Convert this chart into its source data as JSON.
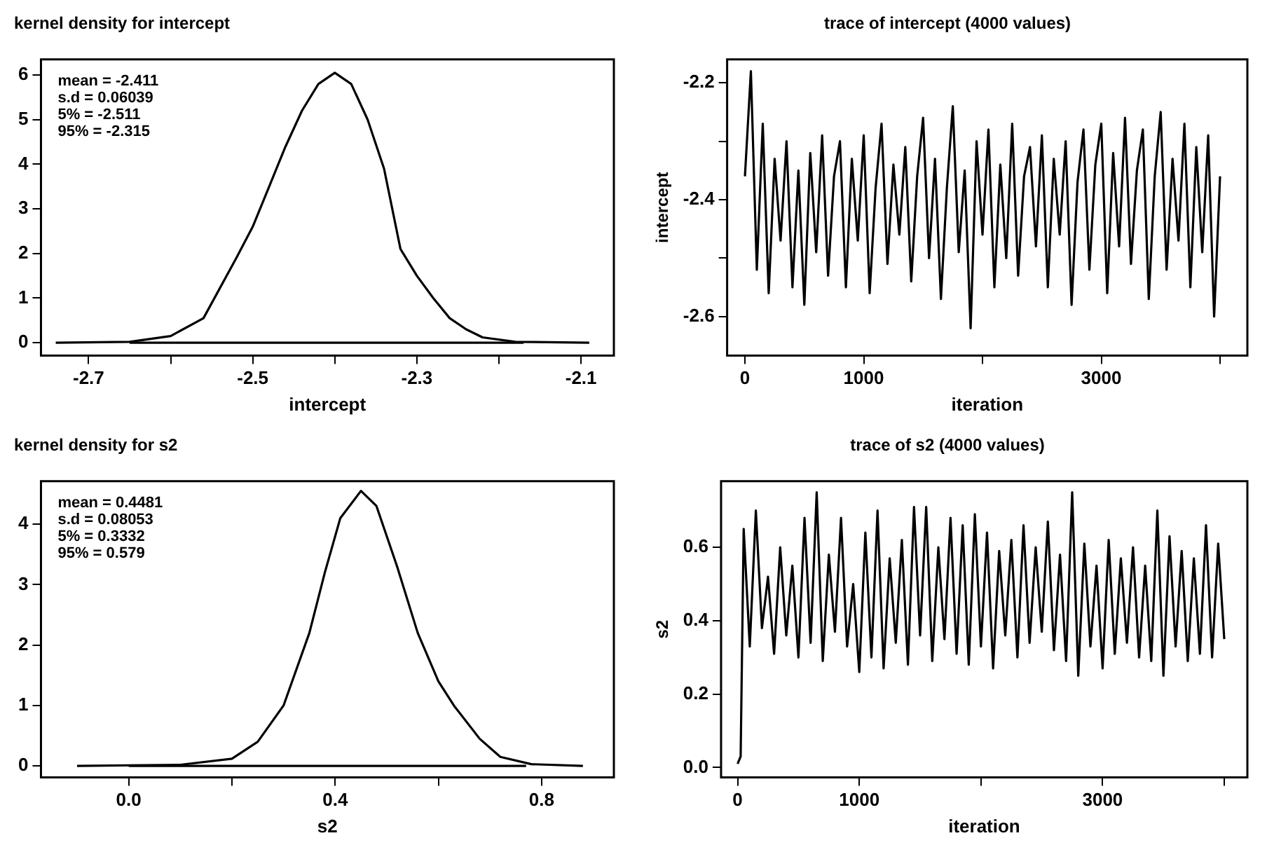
{
  "chart_data": [
    {
      "type": "line",
      "title": "kernel density for intercept",
      "xlabel": "intercept",
      "marker": "none",
      "line_style": "solid",
      "grid": false,
      "legend": false,
      "xlim": [
        -2.758,
        -2.06
      ],
      "xticks": [
        -2.7,
        {
          "value": -2.6,
          "label": null
        },
        -2.5,
        {
          "value": -2.4,
          "label": null
        },
        -2.3,
        {
          "value": -2.2,
          "label": null
        },
        -2.1
      ],
      "ylim": [
        -0.29,
        6.35
      ],
      "yticks": [
        0,
        1,
        2,
        3,
        4,
        5,
        6
      ],
      "annotations": [
        "mean = -2.411",
        "s.d = 0.06039",
        "5% = -2.511",
        "95% = -2.315"
      ],
      "series": [
        {
          "color": "#000000",
          "x": [
            -2.74,
            -2.65,
            -2.6,
            -2.56,
            -2.52,
            -2.5,
            -2.48,
            -2.46,
            -2.44,
            -2.42,
            -2.4,
            -2.38,
            -2.36,
            -2.34,
            -2.32,
            -2.3,
            -2.28,
            -2.26,
            -2.24,
            -2.22,
            -2.18,
            -2.09
          ],
          "values": [
            0,
            0.02,
            0.15,
            0.55,
            1.9,
            2.6,
            3.5,
            4.4,
            5.2,
            5.8,
            6.05,
            5.8,
            5.0,
            3.9,
            2.1,
            1.5,
            1.0,
            0.55,
            0.3,
            0.12,
            0.02,
            0
          ]
        },
        {
          "color": "#000000",
          "x": [
            -2.65,
            -2.17
          ],
          "values": [
            0,
            0
          ]
        }
      ]
    },
    {
      "type": "line",
      "title": "trace of intercept (4000 values)",
      "xlabel": "iteration",
      "ylabel": "intercept",
      "marker": "none",
      "line_style": "solid",
      "grid": false,
      "legend": false,
      "xlim": [
        -150,
        4230
      ],
      "xticks": [
        0,
        1000,
        {
          "value": 2000,
          "label": null
        },
        3000,
        {
          "value": 4000,
          "label": null
        }
      ],
      "ylim": [
        -2.667,
        -2.16
      ],
      "yticks": [
        -2.6,
        {
          "value": -2.5,
          "label": null
        },
        -2.4,
        {
          "value": -2.3,
          "label": null
        },
        -2.2
      ],
      "series": [
        {
          "color": "#000000",
          "x": [
            0,
            50,
            100,
            150,
            200,
            250,
            300,
            350,
            400,
            450,
            500,
            550,
            600,
            650,
            700,
            750,
            800,
            850,
            900,
            950,
            1000,
            1050,
            1100,
            1150,
            1200,
            1250,
            1300,
            1350,
            1400,
            1450,
            1500,
            1550,
            1600,
            1650,
            1700,
            1750,
            1800,
            1850,
            1900,
            1950,
            2000,
            2050,
            2100,
            2150,
            2200,
            2250,
            2300,
            2350,
            2400,
            2450,
            2500,
            2550,
            2600,
            2650,
            2700,
            2750,
            2800,
            2850,
            2900,
            2950,
            3000,
            3050,
            3100,
            3150,
            3200,
            3250,
            3300,
            3350,
            3400,
            3450,
            3500,
            3550,
            3600,
            3650,
            3700,
            3750,
            3800,
            3850,
            3900,
            3950,
            4000
          ],
          "values": [
            -2.36,
            -2.18,
            -2.52,
            -2.27,
            -2.56,
            -2.33,
            -2.47,
            -2.3,
            -2.55,
            -2.35,
            -2.58,
            -2.32,
            -2.49,
            -2.29,
            -2.53,
            -2.36,
            -2.3,
            -2.55,
            -2.33,
            -2.47,
            -2.29,
            -2.56,
            -2.38,
            -2.27,
            -2.51,
            -2.34,
            -2.46,
            -2.31,
            -2.54,
            -2.36,
            -2.26,
            -2.5,
            -2.33,
            -2.57,
            -2.38,
            -2.24,
            -2.49,
            -2.35,
            -2.62,
            -2.3,
            -2.46,
            -2.28,
            -2.55,
            -2.34,
            -2.5,
            -2.27,
            -2.53,
            -2.36,
            -2.31,
            -2.48,
            -2.29,
            -2.55,
            -2.33,
            -2.46,
            -2.3,
            -2.58,
            -2.37,
            -2.28,
            -2.52,
            -2.34,
            -2.27,
            -2.56,
            -2.32,
            -2.48,
            -2.26,
            -2.51,
            -2.35,
            -2.28,
            -2.57,
            -2.36,
            -2.25,
            -2.52,
            -2.33,
            -2.47,
            -2.27,
            -2.55,
            -2.31,
            -2.49,
            -2.29,
            -2.6,
            -2.36
          ]
        }
      ]
    },
    {
      "type": "line",
      "title": "kernel density for s2",
      "xlabel": "s2",
      "marker": "none",
      "line_style": "solid",
      "grid": false,
      "legend": false,
      "xlim": [
        -0.17,
        0.94
      ],
      "xticks": [
        {
          "value": 0,
          "label": "0.0"
        },
        {
          "value": 0.2,
          "label": null
        },
        0.4,
        {
          "value": 0.6,
          "label": null
        },
        0.8
      ],
      "ylim": [
        -0.19,
        4.71
      ],
      "yticks": [
        0,
        1,
        2,
        3,
        4
      ],
      "annotations": [
        "mean = 0.4481",
        "s.d = 0.08053",
        "5% = 0.3332",
        "95% = 0.579"
      ],
      "series": [
        {
          "color": "#000000",
          "x": [
            -0.1,
            0.1,
            0.2,
            0.25,
            0.3,
            0.35,
            0.38,
            0.41,
            0.45,
            0.48,
            0.52,
            0.56,
            0.6,
            0.63,
            0.68,
            0.72,
            0.78,
            0.88
          ],
          "values": [
            0,
            0.02,
            0.12,
            0.4,
            1.0,
            2.2,
            3.2,
            4.1,
            4.55,
            4.3,
            3.3,
            2.2,
            1.4,
            1.0,
            0.45,
            0.15,
            0.03,
            0
          ]
        },
        {
          "color": "#000000",
          "x": [
            0.0,
            0.77
          ],
          "values": [
            0,
            0
          ]
        }
      ]
    },
    {
      "type": "line",
      "title": "trace of s2 (4000 values)",
      "xlabel": "iteration",
      "ylabel": "s2",
      "marker": "none",
      "line_style": "solid",
      "grid": false,
      "legend": false,
      "xlim": [
        -136,
        4190
      ],
      "xticks": [
        0,
        1000,
        {
          "value": 2000,
          "label": null
        },
        3000,
        {
          "value": 4000,
          "label": null
        }
      ],
      "ylim": [
        -0.027,
        0.78
      ],
      "yticks": [
        {
          "value": 0,
          "label": "0.0"
        },
        0.2,
        0.4,
        0.6
      ],
      "series": [
        {
          "color": "#000000",
          "x": [
            0,
            25,
            50,
            100,
            150,
            200,
            250,
            300,
            350,
            400,
            450,
            500,
            550,
            600,
            650,
            700,
            750,
            800,
            850,
            900,
            950,
            1000,
            1050,
            1100,
            1150,
            1200,
            1250,
            1300,
            1350,
            1400,
            1450,
            1500,
            1550,
            1600,
            1650,
            1700,
            1750,
            1800,
            1850,
            1900,
            1950,
            2000,
            2050,
            2100,
            2150,
            2200,
            2250,
            2300,
            2350,
            2400,
            2450,
            2500,
            2550,
            2600,
            2650,
            2700,
            2750,
            2800,
            2850,
            2900,
            2950,
            3000,
            3050,
            3100,
            3150,
            3200,
            3250,
            3300,
            3350,
            3400,
            3450,
            3500,
            3550,
            3600,
            3650,
            3700,
            3750,
            3800,
            3850,
            3900,
            3950,
            4000
          ],
          "values": [
            0.01,
            0.03,
            0.65,
            0.33,
            0.7,
            0.38,
            0.52,
            0.31,
            0.6,
            0.36,
            0.55,
            0.3,
            0.68,
            0.34,
            0.75,
            0.29,
            0.58,
            0.37,
            0.68,
            0.33,
            0.5,
            0.26,
            0.64,
            0.3,
            0.7,
            0.27,
            0.57,
            0.34,
            0.62,
            0.28,
            0.71,
            0.36,
            0.71,
            0.29,
            0.6,
            0.35,
            0.68,
            0.31,
            0.66,
            0.28,
            0.69,
            0.33,
            0.64,
            0.27,
            0.59,
            0.36,
            0.62,
            0.3,
            0.66,
            0.34,
            0.6,
            0.37,
            0.67,
            0.32,
            0.58,
            0.29,
            0.75,
            0.25,
            0.61,
            0.33,
            0.55,
            0.27,
            0.62,
            0.31,
            0.57,
            0.34,
            0.6,
            0.3,
            0.55,
            0.29,
            0.7,
            0.25,
            0.63,
            0.33,
            0.59,
            0.29,
            0.57,
            0.31,
            0.66,
            0.3,
            0.61,
            0.35
          ]
        }
      ]
    }
  ]
}
